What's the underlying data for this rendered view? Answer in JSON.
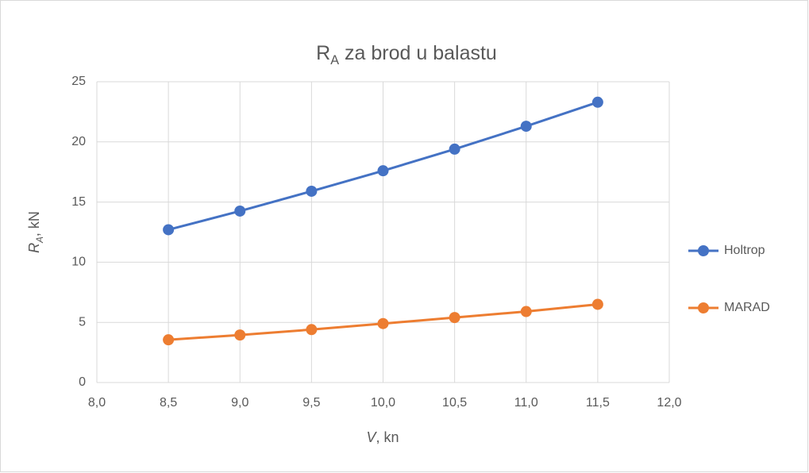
{
  "chart_data": {
    "type": "line",
    "title": {
      "base": "R",
      "sub": "A",
      "text": " za brod u balastu"
    },
    "xlabel": {
      "base": "V",
      "text": ", kn"
    },
    "ylabel": {
      "base": "R",
      "sub": "A",
      "text": ", kN"
    },
    "x": [
      8.5,
      9.0,
      9.5,
      10.0,
      10.5,
      11.0,
      11.5
    ],
    "series": [
      {
        "name": "Holtrop",
        "color": "#4472c4",
        "values": [
          12.7,
          14.25,
          15.9,
          17.6,
          19.4,
          21.3,
          23.3
        ]
      },
      {
        "name": "MARAD",
        "color": "#ed7d31",
        "values": [
          3.55,
          3.95,
          4.4,
          4.9,
          5.4,
          5.9,
          6.5
        ]
      }
    ],
    "xlim": [
      8,
      12
    ],
    "xticks": [
      {
        "value": 8,
        "label": "8,0"
      },
      {
        "value": 8.5,
        "label": "8,5"
      },
      {
        "value": 9,
        "label": "9,0"
      },
      {
        "value": 9.5,
        "label": "9,5"
      },
      {
        "value": 10,
        "label": "10,0"
      },
      {
        "value": 10.5,
        "label": "10,5"
      },
      {
        "value": 11,
        "label": "11,0"
      },
      {
        "value": 11.5,
        "label": "11,5"
      },
      {
        "value": 12,
        "label": "12,0"
      }
    ],
    "ylim": [
      0,
      25
    ],
    "yticks": [
      0,
      5,
      10,
      15,
      20,
      25
    ],
    "grid": true,
    "legend": "right"
  }
}
